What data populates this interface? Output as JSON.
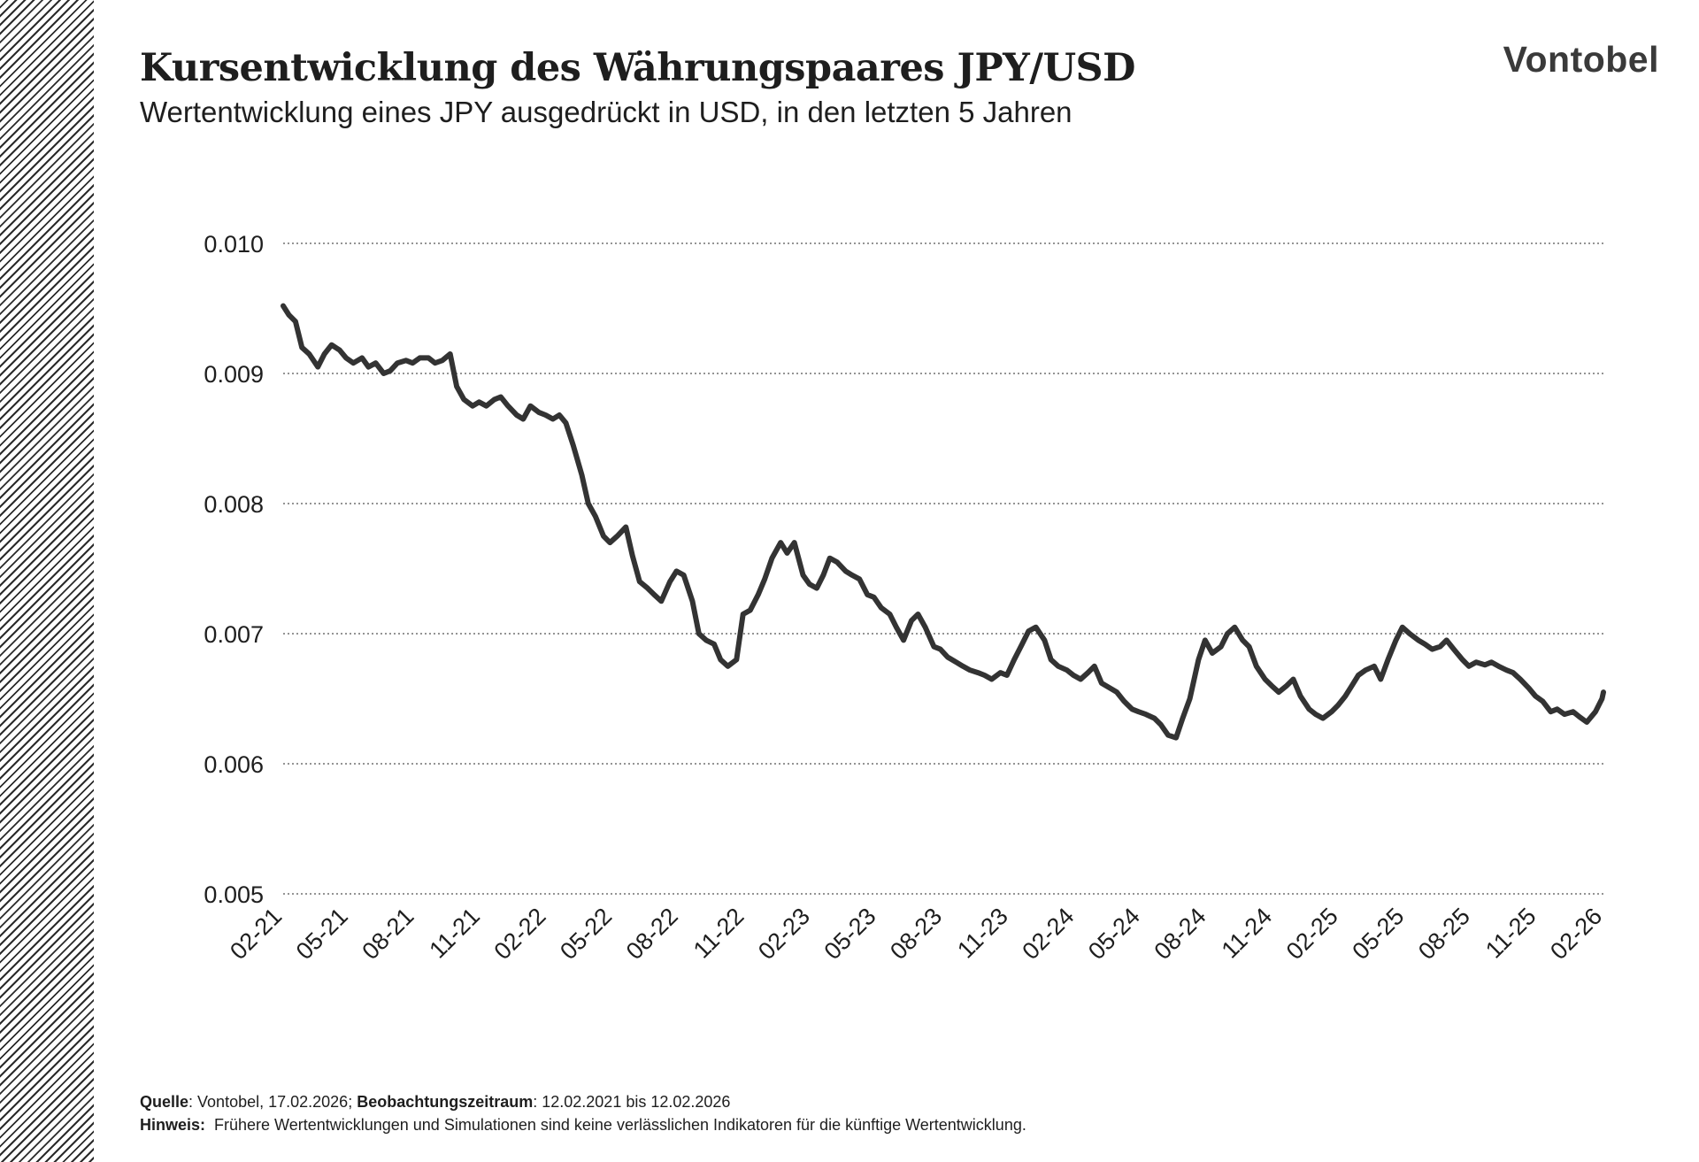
{
  "header": {
    "title": "Kursentwicklung des Währungspaares JPY/USD",
    "subtitle": "Wertentwicklung eines JPY ausgedrückt in USD, in den letzten 5 Jahren",
    "logo": "Vontobel"
  },
  "footer": {
    "source_label": "Quelle",
    "source_value": ": Vontobel, 17.02.2026; ",
    "period_label": "Beobachtungszeitraum",
    "period_value": ": 12.02.2021 bis 12.02.2026",
    "note_label": "Hinweis:",
    "note_value": "  Frühere Wertentwicklungen und Simulationen sind keine verlässlichen Indikatoren für die künftige Wertentwicklung."
  },
  "colors": {
    "line": "#333333",
    "grid": "#555555",
    "text": "#1e1e1e"
  },
  "chart_data": {
    "type": "line",
    "grid": "horizontal dotted",
    "ylim": [
      0.005,
      0.01
    ],
    "y_ticks": [
      "0.010",
      "0.009",
      "0.008",
      "0.007",
      "0.006",
      "0.005"
    ],
    "y_tick_values": [
      0.01,
      0.009,
      0.008,
      0.007,
      0.006,
      0.005
    ],
    "x_ticks": [
      "02-21",
      "05-21",
      "08-21",
      "11-21",
      "02-22",
      "05-22",
      "08-22",
      "11-22",
      "02-23",
      "05-23",
      "08-23",
      "11-23",
      "02-24",
      "05-24",
      "08-24",
      "11-24",
      "02-25",
      "05-25",
      "08-25",
      "11-25",
      "02-26"
    ],
    "series": [
      {
        "x": [
          "2021-02-12",
          "2021-02-20",
          "2021-03-01",
          "2021-03-10",
          "2021-03-20",
          "2021-04-01",
          "2021-04-10",
          "2021-04-20",
          "2021-05-01",
          "2021-05-10",
          "2021-05-20",
          "2021-06-01",
          "2021-06-10",
          "2021-06-20",
          "2021-07-01",
          "2021-07-10",
          "2021-07-20",
          "2021-08-01",
          "2021-08-10",
          "2021-08-20",
          "2021-09-01",
          "2021-09-10",
          "2021-09-20",
          "2021-10-01",
          "2021-10-10",
          "2021-10-20",
          "2021-11-01",
          "2021-11-10",
          "2021-11-20",
          "2021-12-01",
          "2021-12-10",
          "2021-12-20",
          "2022-01-01",
          "2022-01-10",
          "2022-01-20",
          "2022-02-01",
          "2022-02-10",
          "2022-02-20",
          "2022-03-01",
          "2022-03-10",
          "2022-03-20",
          "2022-04-01",
          "2022-04-10",
          "2022-04-20",
          "2022-05-01",
          "2022-05-10",
          "2022-05-20",
          "2022-06-01",
          "2022-06-10",
          "2022-06-20",
          "2022-07-01",
          "2022-07-10",
          "2022-07-20",
          "2022-08-01",
          "2022-08-10",
          "2022-08-20",
          "2022-09-01",
          "2022-09-10",
          "2022-09-20",
          "2022-10-01",
          "2022-10-10",
          "2022-10-20",
          "2022-11-01",
          "2022-11-10",
          "2022-11-20",
          "2022-12-01",
          "2022-12-10",
          "2022-12-20",
          "2023-01-01",
          "2023-01-10",
          "2023-01-20",
          "2023-02-01",
          "2023-02-10",
          "2023-02-20",
          "2023-03-01",
          "2023-03-10",
          "2023-03-20",
          "2023-04-01",
          "2023-04-10",
          "2023-04-20",
          "2023-05-01",
          "2023-05-10",
          "2023-05-20",
          "2023-06-01",
          "2023-06-10",
          "2023-06-20",
          "2023-07-01",
          "2023-07-10",
          "2023-07-20",
          "2023-08-01",
          "2023-08-10",
          "2023-08-20",
          "2023-09-01",
          "2023-09-10",
          "2023-09-20",
          "2023-10-01",
          "2023-10-10",
          "2023-10-20",
          "2023-11-01",
          "2023-11-10",
          "2023-11-20",
          "2023-12-01",
          "2023-12-10",
          "2023-12-20",
          "2024-01-01",
          "2024-01-10",
          "2024-01-20",
          "2024-02-01",
          "2024-02-10",
          "2024-02-20",
          "2024-03-01",
          "2024-03-10",
          "2024-03-20",
          "2024-04-01",
          "2024-04-10",
          "2024-04-20",
          "2024-05-01",
          "2024-05-10",
          "2024-05-20",
          "2024-06-01",
          "2024-06-10",
          "2024-06-20",
          "2024-07-01",
          "2024-07-10",
          "2024-07-20",
          "2024-08-01",
          "2024-08-10",
          "2024-08-20",
          "2024-09-01",
          "2024-09-10",
          "2024-09-20",
          "2024-10-01",
          "2024-10-10",
          "2024-10-20",
          "2024-11-01",
          "2024-11-10",
          "2024-11-20",
          "2024-12-01",
          "2024-12-10",
          "2024-12-20",
          "2025-01-01",
          "2025-01-10",
          "2025-01-20",
          "2025-02-01",
          "2025-02-10",
          "2025-02-20",
          "2025-03-01",
          "2025-03-10",
          "2025-03-20",
          "2025-04-01",
          "2025-04-10",
          "2025-04-20",
          "2025-05-01",
          "2025-05-10",
          "2025-05-20",
          "2025-06-01",
          "2025-06-10",
          "2025-06-20",
          "2025-07-01",
          "2025-07-10",
          "2025-07-20",
          "2025-08-01",
          "2025-08-10",
          "2025-08-20",
          "2025-09-01",
          "2025-09-10",
          "2025-09-20",
          "2025-10-01",
          "2025-10-10",
          "2025-10-20",
          "2025-11-01",
          "2025-11-10",
          "2025-11-20",
          "2025-12-01",
          "2025-12-10",
          "2025-12-20",
          "2026-01-01",
          "2026-01-10",
          "2026-01-20",
          "2026-02-01",
          "2026-02-10",
          "2026-02-12"
        ],
        "values": [
          0.00952,
          0.00945,
          0.0094,
          0.0092,
          0.00915,
          0.00905,
          0.00915,
          0.00922,
          0.00918,
          0.00912,
          0.00908,
          0.00912,
          0.00905,
          0.00908,
          0.009,
          0.00902,
          0.00908,
          0.0091,
          0.00908,
          0.00912,
          0.00912,
          0.00908,
          0.0091,
          0.00915,
          0.0089,
          0.0088,
          0.00875,
          0.00878,
          0.00875,
          0.0088,
          0.00882,
          0.00875,
          0.00868,
          0.00865,
          0.00875,
          0.0087,
          0.00868,
          0.00865,
          0.00868,
          0.00862,
          0.00845,
          0.00822,
          0.008,
          0.0079,
          0.00775,
          0.0077,
          0.00775,
          0.00782,
          0.0076,
          0.0074,
          0.00735,
          0.0073,
          0.00725,
          0.0074,
          0.00748,
          0.00745,
          0.00725,
          0.007,
          0.00695,
          0.00692,
          0.0068,
          0.00675,
          0.0068,
          0.00715,
          0.00718,
          0.0073,
          0.00742,
          0.00758,
          0.0077,
          0.00762,
          0.0077,
          0.00745,
          0.00738,
          0.00735,
          0.00745,
          0.00758,
          0.00755,
          0.00748,
          0.00745,
          0.00742,
          0.0073,
          0.00728,
          0.0072,
          0.00715,
          0.00705,
          0.00695,
          0.0071,
          0.00715,
          0.00705,
          0.0069,
          0.00688,
          0.00682,
          0.00678,
          0.00675,
          0.00672,
          0.0067,
          0.00668,
          0.00665,
          0.0067,
          0.00668,
          0.0068,
          0.00692,
          0.00702,
          0.00705,
          0.00695,
          0.0068,
          0.00675,
          0.00672,
          0.00668,
          0.00665,
          0.0067,
          0.00675,
          0.00662,
          0.00658,
          0.00655,
          0.00648,
          0.00642,
          0.0064,
          0.00638,
          0.00635,
          0.0063,
          0.00622,
          0.0062,
          0.00635,
          0.0065,
          0.0068,
          0.00695,
          0.00685,
          0.0069,
          0.007,
          0.00705,
          0.00695,
          0.0069,
          0.00675,
          0.00665,
          0.0066,
          0.00655,
          0.0066,
          0.00665,
          0.00652,
          0.00642,
          0.00638,
          0.00635,
          0.0064,
          0.00645,
          0.00652,
          0.0066,
          0.00668,
          0.00672,
          0.00675,
          0.00665,
          0.0068,
          0.00695,
          0.00705,
          0.007,
          0.00695,
          0.00692,
          0.00688,
          0.0069,
          0.00695,
          0.00688,
          0.0068,
          0.00675,
          0.00678,
          0.00676,
          0.00678,
          0.00675,
          0.00672,
          0.0067,
          0.00665,
          0.00658,
          0.00652,
          0.00648,
          0.0064,
          0.00642,
          0.00638,
          0.0064,
          0.00636,
          0.00632,
          0.0064,
          0.0065,
          0.00655
        ]
      }
    ]
  }
}
